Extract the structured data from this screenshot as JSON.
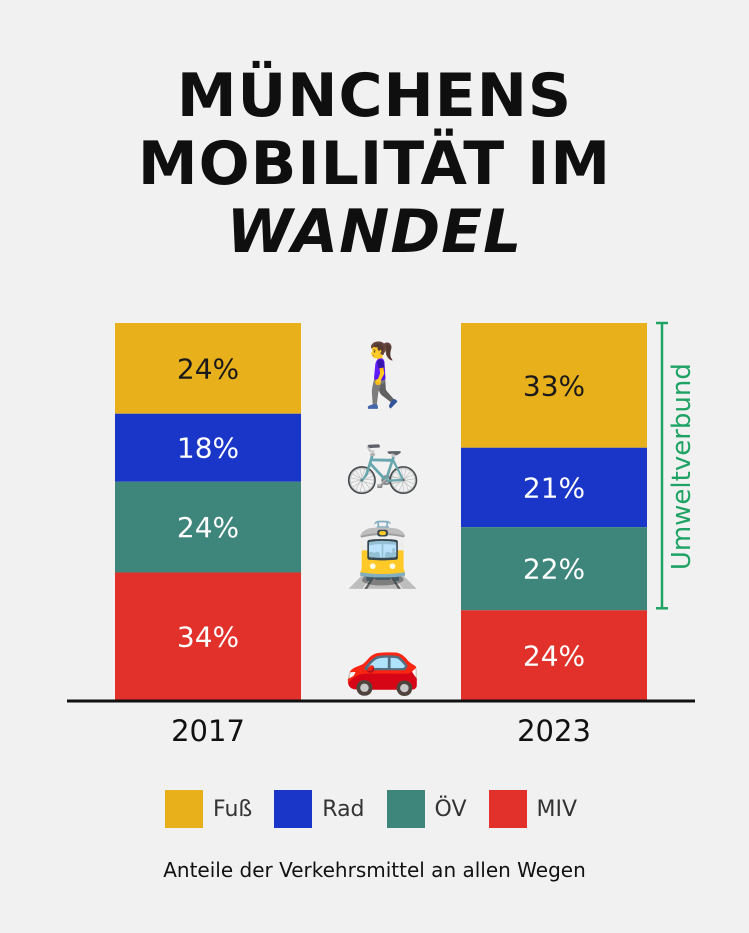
{
  "title": {
    "line1": "MÜNCHENS",
    "line2": "MOBILITÄT IM",
    "line3": "WANDEL"
  },
  "emojis": [
    {
      "name": "woman-walking-icon",
      "glyph": "🚶‍♀️"
    },
    {
      "name": "bicycle-icon",
      "glyph": "🚲"
    },
    {
      "name": "tram-icon",
      "glyph": "🚊"
    },
    {
      "name": "car-icon",
      "glyph": "🚗"
    }
  ],
  "chart_data": {
    "type": "bar",
    "stacked": true,
    "normalized_percent": true,
    "title": "MÜNCHENS MOBILITÄT IM WANDEL",
    "subtitle": "Anteile der Verkehrsmittel an allen Wegen",
    "categories": [
      "2017",
      "2023"
    ],
    "series": [
      {
        "name": "Fuß",
        "color": "#e8b01a",
        "label_color": "#1a1a1a",
        "values": [
          24,
          33
        ]
      },
      {
        "name": "Rad",
        "color": "#1a36c8",
        "label_color": "#ffffff",
        "values": [
          18,
          21
        ]
      },
      {
        "name": "ÖV",
        "color": "#3e867c",
        "label_color": "#ffffff",
        "values": [
          24,
          22
        ]
      },
      {
        "name": "MIV",
        "color": "#e1312a",
        "label_color": "#ffffff",
        "values": [
          34,
          24
        ]
      }
    ],
    "value_suffix": "%",
    "ylim": [
      0,
      100
    ],
    "legend": "bottom",
    "grid": false,
    "annotations": [
      {
        "text": "Umweltverbund",
        "color": "#1fa364",
        "spans_category": "2023",
        "spans_series": [
          "Fuß",
          "Rad",
          "ÖV"
        ]
      }
    ]
  },
  "caption": "Anteile der Verkehrsmittel an allen Wegen"
}
